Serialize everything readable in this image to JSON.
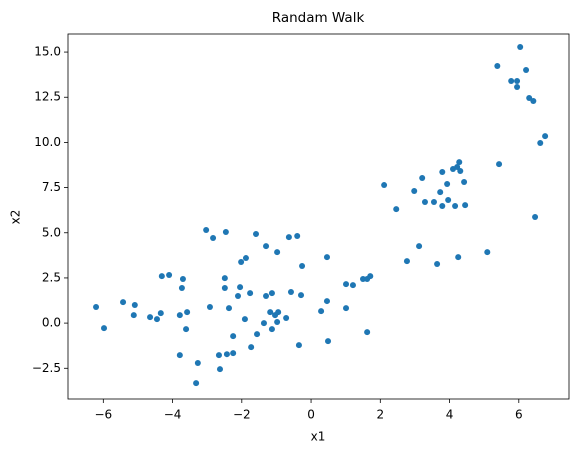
{
  "chart_data": {
    "type": "scatter",
    "title": "Randam Walk",
    "x_label": "x1",
    "y_label": "x2",
    "color": "#1f77b4",
    "grid": false,
    "x": [
      -6.21,
      -5.98,
      -5.43,
      -5.12,
      -5.09,
      -4.65,
      -4.45,
      -4.34,
      -4.31,
      -4.1,
      -3.79,
      -3.79,
      -3.73,
      -3.7,
      -3.61,
      -3.58,
      -3.32,
      -3.27,
      -3.03,
      -2.92,
      -2.83,
      -2.66,
      -2.63,
      -2.49,
      -2.49,
      -2.46,
      -2.43,
      -2.37,
      -2.25,
      -2.25,
      -2.11,
      -2.05,
      -2.02,
      -1.91,
      -1.88,
      -1.76,
      -1.73,
      -1.59,
      -1.56,
      -1.36,
      -1.3,
      -1.3,
      -1.18,
      -1.13,
      -1.13,
      -1.04,
      -0.98,
      -0.98,
      -0.95,
      -0.72,
      -0.64,
      -0.58,
      -0.4,
      -0.35,
      -0.29,
      -0.26,
      0.29,
      0.46,
      0.46,
      0.49,
      1.01,
      1.01,
      1.21,
      1.5,
      1.62,
      1.62,
      1.71,
      2.11,
      2.46,
      2.77,
      2.98,
      3.12,
      3.21,
      3.29,
      3.55,
      3.64,
      3.73,
      3.79,
      3.79,
      3.93,
      3.96,
      4.1,
      4.16,
      4.22,
      4.25,
      4.28,
      4.31,
      4.42,
      4.45,
      5.09,
      5.38,
      5.43,
      5.78,
      5.95,
      5.95,
      6.04,
      6.21,
      6.3,
      6.42,
      6.47,
      6.62,
      6.76
    ],
    "y": [
      0.89,
      -0.28,
      1.16,
      0.44,
      1.0,
      0.33,
      0.22,
      0.55,
      2.6,
      2.66,
      0.44,
      -1.77,
      1.94,
      2.44,
      -0.33,
      0.61,
      -3.32,
      -2.21,
      5.15,
      0.89,
      4.71,
      -1.77,
      -2.55,
      2.49,
      1.94,
      5.04,
      -1.72,
      0.83,
      -1.66,
      -0.72,
      1.5,
      1.99,
      3.38,
      0.22,
      3.6,
      1.66,
      -1.33,
      4.93,
      -0.61,
      0.0,
      4.26,
      1.5,
      0.61,
      1.66,
      -0.33,
      0.44,
      0.06,
      3.93,
      0.61,
      0.28,
      4.76,
      1.72,
      4.82,
      -1.22,
      1.55,
      3.16,
      0.66,
      1.22,
      3.65,
      -1.0,
      0.83,
      2.16,
      2.1,
      2.44,
      2.44,
      -0.5,
      2.6,
      7.64,
      6.31,
      3.43,
      7.31,
      4.26,
      8.03,
      6.7,
      6.7,
      3.27,
      7.25,
      8.36,
      6.48,
      7.7,
      6.81,
      8.53,
      6.48,
      8.64,
      3.65,
      8.91,
      8.42,
      7.81,
      6.53,
      3.93,
      14.23,
      8.8,
      13.4,
      13.4,
      13.07,
      15.28,
      14.01,
      12.46,
      12.29,
      5.87,
      9.97,
      10.35
    ],
    "xlim": [
      -7.02,
      7.45
    ],
    "ylim": [
      -4.2,
      16.0
    ],
    "xticks": [
      {
        "value": -6,
        "label": "−6"
      },
      {
        "value": -4,
        "label": "−4"
      },
      {
        "value": -2,
        "label": "−2"
      },
      0,
      2,
      4,
      6
    ],
    "yticks": [
      {
        "value": -2.5,
        "label": "−2.5"
      },
      {
        "value": 0,
        "label": "0.0"
      },
      2.5,
      {
        "value": 5,
        "label": "5.0"
      },
      7.5,
      {
        "value": 10,
        "label": "10.0"
      },
      12.5,
      {
        "value": 15,
        "label": "15.0"
      }
    ]
  }
}
